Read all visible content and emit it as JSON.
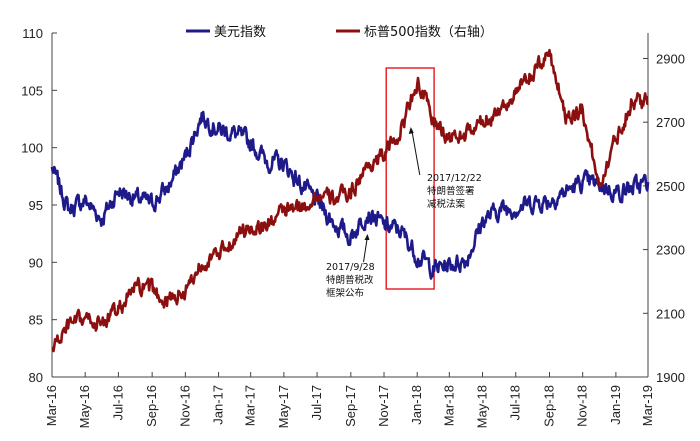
{
  "chart_data": {
    "type": "line",
    "x": [
      "2016-03-01",
      "2016-04-01",
      "2016-05-01",
      "2016-06-01",
      "2016-07-01",
      "2016-08-01",
      "2016-09-01",
      "2016-10-01",
      "2016-11-01",
      "2016-12-01",
      "2017-01-01",
      "2017-02-01",
      "2017-03-01",
      "2017-04-01",
      "2017-05-01",
      "2017-06-01",
      "2017-07-01",
      "2017-08-01",
      "2017-09-01",
      "2017-10-01",
      "2017-11-01",
      "2017-12-01",
      "2018-01-01",
      "2018-02-01",
      "2018-03-01",
      "2018-04-01",
      "2018-05-01",
      "2018-06-01",
      "2018-07-01",
      "2018-08-01",
      "2018-09-01",
      "2018-10-01",
      "2018-11-01",
      "2018-12-01",
      "2019-01-01",
      "2019-02-01",
      "2019-03-01"
    ],
    "x_tick_labels": [
      "Mar-16",
      "May-16",
      "Jul-16",
      "Sep-16",
      "Nov-16",
      "Jan-17",
      "Mar-17",
      "May-17",
      "Jul-17",
      "Sep-17",
      "Nov-17",
      "Jan-18",
      "Mar-18",
      "May-18",
      "Jul-18",
      "Sep-18",
      "Nov-18",
      "Jan-19",
      "Mar-19"
    ],
    "x_tick_dates": [
      "2016-03-01",
      "2016-05-01",
      "2016-07-01",
      "2016-09-01",
      "2016-11-01",
      "2017-01-01",
      "2017-03-01",
      "2017-05-01",
      "2017-07-01",
      "2017-09-01",
      "2017-11-01",
      "2018-01-01",
      "2018-03-01",
      "2018-05-01",
      "2018-07-01",
      "2018-09-01",
      "2018-11-01",
      "2019-01-01",
      "2019-03-01"
    ],
    "series": [
      {
        "name": "美元指数",
        "axis": "left",
        "color": "#1f1a8a",
        "values": [
          98.2,
          94.6,
          95.4,
          93.8,
          96.3,
          95.6,
          95.1,
          96.6,
          99.2,
          102.8,
          101.6,
          101.2,
          100.4,
          98.8,
          98.6,
          96.8,
          95.3,
          93.4,
          92.2,
          94.4,
          93.2,
          92.8,
          90.6,
          89.4,
          89.8,
          90.2,
          93.6,
          94.6,
          94.8,
          95.2,
          95.4,
          96.2,
          97.0,
          96.8,
          96.1,
          96.5,
          97.0
        ]
      },
      {
        "name": "标普500指数（右轴）",
        "axis": "right",
        "color": "#8b0f0f",
        "values": [
          1990,
          2060,
          2080,
          2070,
          2110,
          2180,
          2170,
          2140,
          2170,
          2260,
          2280,
          2340,
          2370,
          2380,
          2420,
          2430,
          2470,
          2460,
          2480,
          2560,
          2600,
          2670,
          2830,
          2700,
          2650,
          2660,
          2700,
          2740,
          2790,
          2850,
          2920,
          2720,
          2740,
          2500,
          2650,
          2770,
          2760
        ]
      }
    ],
    "y_left": {
      "ticks": [
        "80",
        "85",
        "90",
        "95",
        "100",
        "105",
        "110"
      ],
      "range": [
        80,
        110
      ]
    },
    "y_right": {
      "ticks": [
        "1900",
        "2100",
        "2300",
        "2500",
        "2700",
        "2900"
      ],
      "range": [
        1900,
        2980
      ]
    },
    "legend": {
      "placement": "top-center",
      "items": [
        "美元指数",
        "标普500指数（右轴）"
      ]
    },
    "highlight_box": {
      "from": "2017-11-05",
      "to": "2018-02-01",
      "color": "#e8151c"
    },
    "annotations": [
      {
        "date": "2017-09-28",
        "series": "美元指数",
        "lines": [
          "2017/9/28",
          "特朗普税改",
          "框架公布"
        ]
      },
      {
        "date": "2017-12-22",
        "series": "标普500指数（右轴）",
        "lines": [
          "2017/12/22",
          "特朗普签署",
          "减税法案"
        ]
      }
    ],
    "grid": false
  }
}
